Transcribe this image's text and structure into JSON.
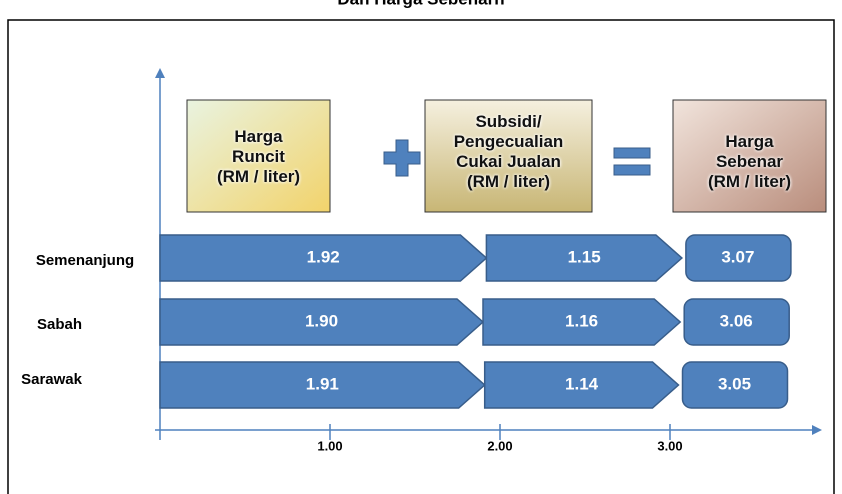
{
  "chart_data": {
    "type": "arrow-bar",
    "title": "Dan Harga Sebenarn",
    "categories": [
      "Semenanjung",
      "Sabah",
      "Sarawak"
    ],
    "series": [
      {
        "name": "Harga\nRuncit\n(RM / liter)",
        "color": "#4f81bd",
        "values": [
          1.92,
          1.9,
          1.91
        ],
        "value_labels": [
          "1.92",
          "1.90",
          "1.91"
        ]
      },
      {
        "name": "Subsidi/\nPengecualian\nCukai Jualan\n(RM / liter)",
        "color": "#4f81bd",
        "values": [
          1.15,
          1.16,
          1.14
        ],
        "value_labels": [
          "1.15",
          "1.16",
          "1.14"
        ]
      },
      {
        "name": "Harga\nSebenar\n(RM / liter)",
        "color": "#4f81bd",
        "values": [
          3.07,
          3.06,
          3.05
        ],
        "value_labels": [
          "3.07",
          "3.06",
          "3.05"
        ]
      }
    ],
    "xticks": [
      {
        "value": 1,
        "label": "1.00"
      },
      {
        "value": 2,
        "label": "2.00"
      },
      {
        "value": 3,
        "label": "3.00"
      }
    ]
  }
}
